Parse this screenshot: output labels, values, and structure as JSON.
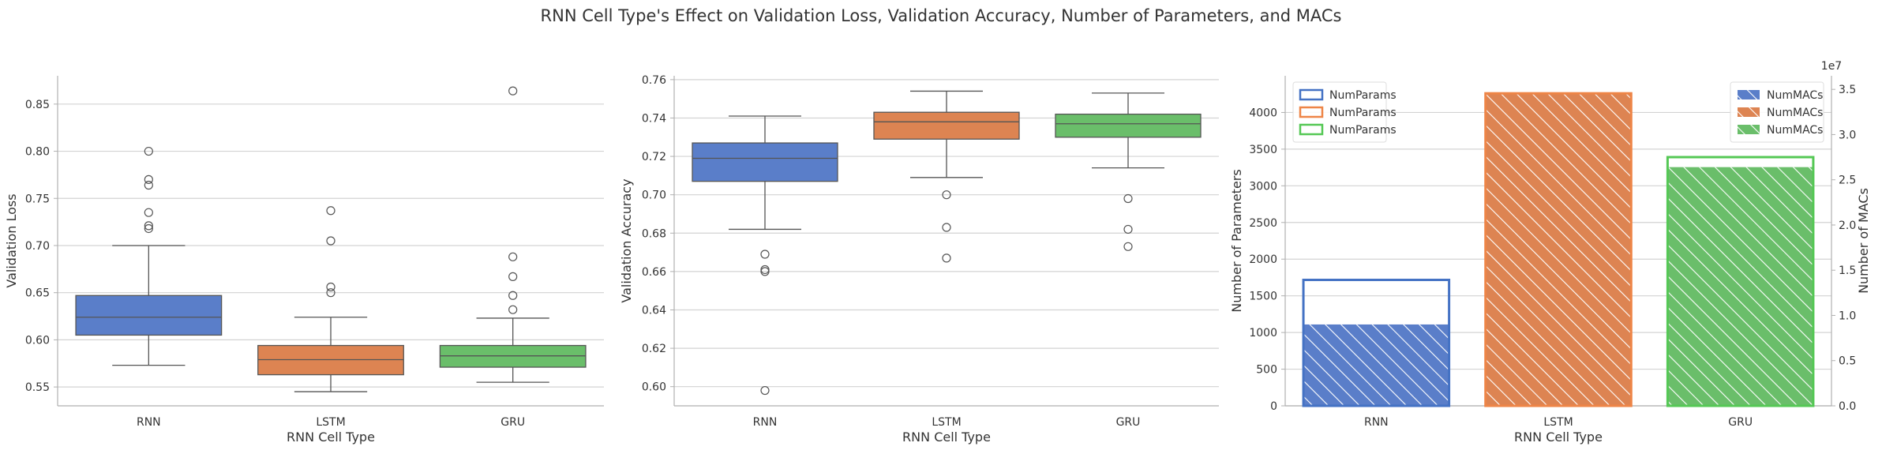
{
  "figure": {
    "title": "RNN Cell Type's Effect on Validation Loss, Validation Accuracy, Number of Parameters, and MACs"
  },
  "colors": {
    "RNN": "#5a7ec9",
    "LSTM": "#dd8452",
    "GRU": "#6abe6a",
    "RNN_edge": "#4472c4",
    "LSTM_edge": "#ee8547",
    "GRU_edge": "#55c855",
    "grid": "#d3d3d3",
    "axis": "#b0b0b0",
    "whisker": "#555555"
  },
  "chart_data": [
    {
      "type": "box",
      "xlabel": "RNN Cell Type",
      "ylabel": "Validation Loss",
      "ylim": [
        0.53,
        0.88
      ],
      "yticks": [
        0.55,
        0.6,
        0.65,
        0.7,
        0.75,
        0.8,
        0.85
      ],
      "ytick_labels": [
        "0.55",
        "0.60",
        "0.65",
        "0.70",
        "0.75",
        "0.80",
        "0.85"
      ],
      "grid": "horizontal",
      "categories": [
        "RNN",
        "LSTM",
        "GRU"
      ],
      "boxes": [
        {
          "category": "RNN",
          "whisker_low": 0.573,
          "q1": 0.605,
          "median": 0.624,
          "q3": 0.647,
          "whisker_high": 0.7,
          "outliers": [
            0.718,
            0.721,
            0.735,
            0.764,
            0.77,
            0.8
          ]
        },
        {
          "category": "LSTM",
          "whisker_low": 0.545,
          "q1": 0.563,
          "median": 0.579,
          "q3": 0.594,
          "whisker_high": 0.624,
          "outliers": [
            0.65,
            0.656,
            0.705,
            0.737
          ]
        },
        {
          "category": "GRU",
          "whisker_low": 0.555,
          "q1": 0.571,
          "median": 0.583,
          "q3": 0.594,
          "whisker_high": 0.623,
          "outliers": [
            0.632,
            0.647,
            0.667,
            0.688,
            0.864
          ]
        }
      ]
    },
    {
      "type": "box",
      "xlabel": "RNN Cell Type",
      "ylabel": "Validation Accuracy",
      "ylim": [
        0.59,
        0.762
      ],
      "yticks": [
        0.6,
        0.62,
        0.64,
        0.66,
        0.68,
        0.7,
        0.72,
        0.74,
        0.76
      ],
      "ytick_labels": [
        "0.60",
        "0.62",
        "0.64",
        "0.66",
        "0.68",
        "0.70",
        "0.72",
        "0.74",
        "0.76"
      ],
      "grid": "horizontal",
      "categories": [
        "RNN",
        "LSTM",
        "GRU"
      ],
      "boxes": [
        {
          "category": "RNN",
          "whisker_low": 0.682,
          "q1": 0.707,
          "median": 0.719,
          "q3": 0.727,
          "whisker_high": 0.741,
          "outliers": [
            0.669,
            0.661,
            0.66,
            0.598
          ]
        },
        {
          "category": "LSTM",
          "whisker_low": 0.709,
          "q1": 0.729,
          "median": 0.738,
          "q3": 0.743,
          "whisker_high": 0.754,
          "outliers": [
            0.7,
            0.683,
            0.667
          ]
        },
        {
          "category": "GRU",
          "whisker_low": 0.714,
          "q1": 0.73,
          "median": 0.737,
          "q3": 0.742,
          "whisker_high": 0.753,
          "outliers": [
            0.698,
            0.682,
            0.673
          ]
        }
      ]
    },
    {
      "type": "bar",
      "xlabel": "RNN Cell Type",
      "ylabel": "Number of Parameters",
      "y2label": "Number of MACs",
      "y2_offset_text": "1e7",
      "categories": [
        "RNN",
        "LSTM",
        "GRU"
      ],
      "ylim": [
        0,
        4500
      ],
      "yticks": [
        0,
        500,
        1000,
        1500,
        2000,
        2500,
        3000,
        3500,
        4000
      ],
      "ytick_labels": [
        "0",
        "500",
        "1000",
        "1500",
        "2000",
        "2500",
        "3000",
        "3500",
        "4000"
      ],
      "y2lim": [
        0,
        36500000
      ],
      "y2ticks": [
        0,
        5000000,
        10000000,
        15000000,
        20000000,
        25000000,
        30000000,
        35000000
      ],
      "y2tick_labels": [
        "0.0",
        "0.5",
        "1.0",
        "1.5",
        "2.0",
        "2.5",
        "3.0",
        "3.5"
      ],
      "grid": "horizontal",
      "series": [
        {
          "name": "NumParams",
          "axis": "left",
          "style": "outline",
          "values": [
            1717,
            4261,
            3391
          ]
        },
        {
          "name": "NumMACs",
          "axis": "right",
          "style": "hatched",
          "values": [
            9000000,
            34500000,
            26400000
          ]
        }
      ],
      "legend_left": {
        "position": "top-left",
        "entries": [
          "NumParams",
          "NumParams",
          "NumParams"
        ]
      },
      "legend_right": {
        "position": "top-right",
        "entries": [
          "NumMACs",
          "NumMACs",
          "NumMACs"
        ]
      }
    }
  ]
}
